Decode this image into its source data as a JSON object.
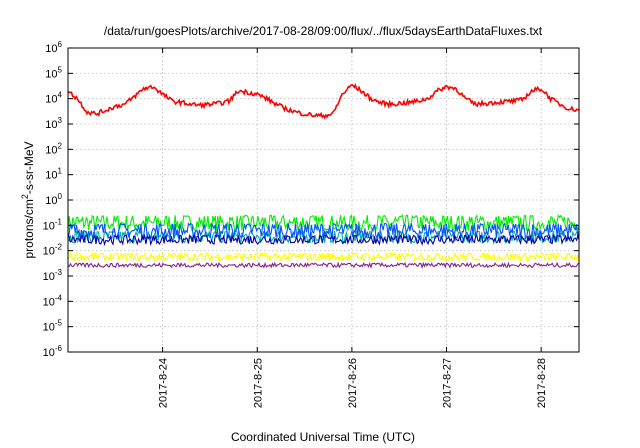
{
  "chart_data": {
    "type": "line",
    "title": "/data/run/goesPlots/archive/2017-08-28/09:00/flux/../flux/5daysEarthDataFluxes.txt",
    "xlabel": "Coordinated Universal Time (UTC)",
    "ylabel": "protons/cm²-s-sr-MeV",
    "ylabel_parts": {
      "pre": "protons/cm",
      "sup": "2",
      "post": "-s-sr-MeV"
    },
    "yscale": "log",
    "ylim_exp": [
      -6,
      6
    ],
    "y_ticks": [
      {
        "base": "10",
        "exp": "-6"
      },
      {
        "base": "10",
        "exp": "-5"
      },
      {
        "base": "10",
        "exp": "-4"
      },
      {
        "base": "10",
        "exp": "-3"
      },
      {
        "base": "10",
        "exp": "-2"
      },
      {
        "base": "10",
        "exp": "-1"
      },
      {
        "base": "10",
        "exp": "0"
      },
      {
        "base": "10",
        "exp": "1"
      },
      {
        "base": "10",
        "exp": "2"
      },
      {
        "base": "10",
        "exp": "3"
      },
      {
        "base": "10",
        "exp": "4"
      },
      {
        "base": "10",
        "exp": "5"
      },
      {
        "base": "10",
        "exp": "6"
      }
    ],
    "xlim_days": [
      0,
      5.4
    ],
    "x_ticks": [
      {
        "label": "2017-8-24",
        "day": 1.0
      },
      {
        "label": "2017-8-25",
        "day": 2.0
      },
      {
        "label": "2017-8-26",
        "day": 3.0
      },
      {
        "label": "2017-8-27",
        "day": 4.0
      },
      {
        "label": "2017-8-28",
        "day": 5.0
      }
    ],
    "grid": true,
    "series": [
      {
        "color": "#ff0000",
        "style": "line",
        "x_day": [
          0.0,
          0.1,
          0.2,
          0.3,
          0.4,
          0.5,
          0.6,
          0.7,
          0.8,
          0.9,
          1.0,
          1.1,
          1.2,
          1.3,
          1.4,
          1.5,
          1.6,
          1.7,
          1.8,
          1.9,
          2.0,
          2.1,
          2.2,
          2.3,
          2.4,
          2.5,
          2.6,
          2.7,
          2.8,
          2.9,
          3.0,
          3.1,
          3.2,
          3.3,
          3.4,
          3.5,
          3.6,
          3.7,
          3.8,
          3.9,
          4.0,
          4.1,
          4.2,
          4.3,
          4.4,
          4.5,
          4.6,
          4.7,
          4.8,
          4.9,
          5.0,
          5.1,
          5.2,
          5.3,
          5.4
        ],
        "values": [
          20000,
          10000,
          3000,
          2500,
          3500,
          5000,
          6000,
          12000,
          25000,
          30000,
          15000,
          8000,
          7000,
          6000,
          5500,
          6000,
          6500,
          8000,
          20000,
          18000,
          15000,
          10000,
          6000,
          4000,
          3000,
          2500,
          2200,
          2100,
          2500,
          15000,
          35000,
          20000,
          10000,
          7000,
          6000,
          6500,
          7000,
          8000,
          10000,
          20000,
          30000,
          25000,
          10000,
          6000,
          6500,
          7000,
          7500,
          8000,
          9000,
          20000,
          25000,
          10000,
          6000,
          4000,
          3500
        ]
      },
      {
        "color": "#00ee00",
        "style": "band",
        "low": 0.06,
        "high": 0.25
      },
      {
        "color": "#00aaaa",
        "style": "band",
        "low": 0.02,
        "high": 0.06
      },
      {
        "color": "#0055ff",
        "style": "band",
        "low": 0.03,
        "high": 0.12
      },
      {
        "color": "#0000aa",
        "style": "band",
        "low": 0.018,
        "high": 0.04
      },
      {
        "color": "#ffff00",
        "style": "band",
        "low": 0.004,
        "high": 0.008
      },
      {
        "color": "#882288",
        "style": "band",
        "low": 0.0022,
        "high": 0.0032
      }
    ]
  }
}
